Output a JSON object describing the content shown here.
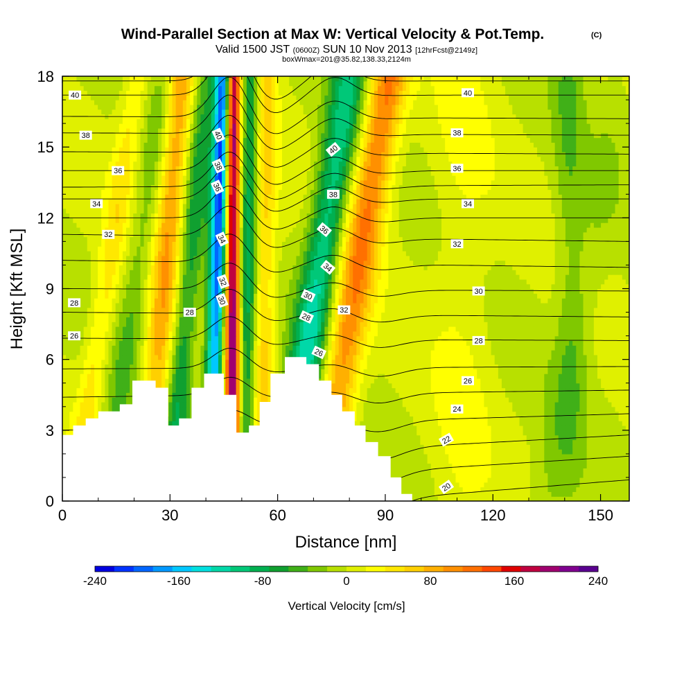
{
  "chart_data": {
    "type": "heatmap",
    "title": "Wind-Parallel Section at Max W: Vertical Velocity & Pot.Temp.",
    "title_mark": "(C)",
    "subtitle": {
      "valid": "Valid 1500 JST",
      "utc": "(0600Z)",
      "date": "SUN 10 Nov 2013",
      "forecast": "[12hrFcst@2149z]",
      "box": "boxWmax=201@35.82,138.33,2124m"
    },
    "xlabel": "Distance [nm]",
    "ylabel": "Height [Kft MSL]",
    "xlim": [
      0,
      158
    ],
    "ylim": [
      0,
      18
    ],
    "x_ticks": [
      "0",
      "30",
      "60",
      "90",
      "120",
      "150"
    ],
    "y_ticks": [
      "0",
      "3",
      "6",
      "9",
      "12",
      "15",
      "18"
    ],
    "colorbar": {
      "label": "Vertical Velocity [cm/s]",
      "ticks": [
        "-240",
        "-160",
        "-80",
        "0",
        "80",
        "160",
        "240"
      ],
      "range": [
        -240,
        240
      ],
      "colors": [
        "#0000e0",
        "#0033ff",
        "#0066ff",
        "#0099ff",
        "#00c8ff",
        "#00e0e0",
        "#00d8a8",
        "#00c878",
        "#00b050",
        "#10a030",
        "#40b018",
        "#80c800",
        "#b8e000",
        "#e0f000",
        "#ffff00",
        "#ffe800",
        "#ffd000",
        "#ffb000",
        "#ff9000",
        "#ff7000",
        "#ff4800",
        "#e00000",
        "#c00040",
        "#a00070",
        "#800090",
        "#5a0090"
      ]
    },
    "contour_labels": [
      "40",
      "38",
      "36",
      "34",
      "32",
      "30",
      "28",
      "26",
      "24",
      "22",
      "20"
    ],
    "terrain": [
      [
        0,
        0
      ],
      [
        0,
        2.8
      ],
      [
        3,
        2.8
      ],
      [
        3,
        3.2
      ],
      [
        6.5,
        3.2
      ],
      [
        6.5,
        3.5
      ],
      [
        10,
        3.5
      ],
      [
        10,
        3.8
      ],
      [
        16,
        3.8
      ],
      [
        16,
        4.1
      ],
      [
        19.5,
        4.1
      ],
      [
        19.5,
        5.1
      ],
      [
        26,
        5.1
      ],
      [
        26,
        4.8
      ],
      [
        29.5,
        4.8
      ],
      [
        29.5,
        3.2
      ],
      [
        32.5,
        3.2
      ],
      [
        32.5,
        3.5
      ],
      [
        36,
        3.5
      ],
      [
        36,
        4.8
      ],
      [
        39.5,
        4.8
      ],
      [
        39.5,
        5.4
      ],
      [
        45,
        5.4
      ],
      [
        45,
        4.5
      ],
      [
        48.5,
        4.5
      ],
      [
        48.5,
        2.9
      ],
      [
        52,
        2.9
      ],
      [
        52,
        3.2
      ],
      [
        55,
        3.2
      ],
      [
        55,
        4.2
      ],
      [
        58,
        4.2
      ],
      [
        58,
        5.4
      ],
      [
        62,
        5.4
      ],
      [
        62,
        6.1
      ],
      [
        68,
        6.1
      ],
      [
        68,
        5.8
      ],
      [
        71.5,
        5.8
      ],
      [
        71.5,
        5.1
      ],
      [
        75,
        5.1
      ],
      [
        75,
        4.5
      ],
      [
        78,
        4.5
      ],
      [
        78,
        3.8
      ],
      [
        81.5,
        3.8
      ],
      [
        81.5,
        3.2
      ],
      [
        84.5,
        3.2
      ],
      [
        84.5,
        2.5
      ],
      [
        88,
        2.5
      ],
      [
        88,
        1.9
      ],
      [
        91.5,
        1.9
      ],
      [
        91.5,
        1.0
      ],
      [
        94.5,
        1.0
      ],
      [
        94.5,
        0.3
      ],
      [
        97.5,
        0.3
      ],
      [
        97.5,
        0
      ]
    ],
    "w_features": [
      {
        "x0": 3.5,
        "x1": 21,
        "w": 2.5,
        "top": 0.18,
        "bot": 0.2
      },
      {
        "x0": 11.5,
        "x1": 29.5,
        "w": 3.0,
        "top": -0.15,
        "bot": -0.15
      },
      {
        "x0": 24,
        "x1": 33,
        "w": 3.0,
        "top": 0.45,
        "bot": 0.3
      },
      {
        "x0": 29.5,
        "x1": 40,
        "w": 2.6,
        "top": -0.25,
        "bot": -0.35
      },
      {
        "x0": 41,
        "x1": 45,
        "w": 1.7,
        "top": -0.95,
        "bot": -0.65
      },
      {
        "x0": 47.5,
        "x1": 47.5,
        "w": 1.5,
        "top": 0.95,
        "bot": 0.85
      },
      {
        "x0": 51,
        "x1": 53,
        "w": 2.2,
        "top": -0.45,
        "bot": -0.4
      },
      {
        "x0": 55,
        "x1": 56,
        "w": 2.5,
        "top": 0.35,
        "bot": 0.3
      },
      {
        "x0": 62,
        "x1": 80,
        "w": 3.5,
        "top": -0.4,
        "bot": -0.55
      },
      {
        "x0": 72,
        "x1": 91,
        "w": 3.8,
        "top": 0.5,
        "bot": 0.4
      },
      {
        "x0": 111,
        "x1": 112,
        "w": 6.0,
        "top": 0.08,
        "bot": 0.08
      },
      {
        "x0": 142,
        "x1": 141,
        "w": 3.0,
        "top": -0.15,
        "bot": -0.05
      },
      {
        "x0": 135,
        "x1": 156,
        "w": 4.0,
        "top": -0.04,
        "bot": -0.1
      }
    ],
    "theta_levels": [
      {
        "label": "20",
        "left": -4.5,
        "right": -1.0
      },
      {
        "label": "21",
        "left": -2.5,
        "right": -0.2
      },
      {
        "label": "22",
        "left": -1.0,
        "right": 0.9
      },
      {
        "label": "23",
        "left": 0.4,
        "right": 1.9
      },
      {
        "label": "24",
        "left": 1.5,
        "right": 2.8
      },
      {
        "label": "25",
        "left": 3.0,
        "right": 3.7
      },
      {
        "label": "26",
        "left": 4.4,
        "right": 4.7
      },
      {
        "label": "27",
        "left": 5.6,
        "right": 5.7
      },
      {
        "label": "28",
        "left": 6.9,
        "right": 6.8
      },
      {
        "label": "29",
        "left": 8.0,
        "right": 7.8
      },
      {
        "label": "30",
        "left": 9.0,
        "right": 8.9
      },
      {
        "label": "31",
        "left": 10.2,
        "right": 9.9
      },
      {
        "label": "32",
        "left": 11.3,
        "right": 11.0
      },
      {
        "label": "33",
        "left": 12.0,
        "right": 12.0
      },
      {
        "label": "34",
        "left": 12.8,
        "right": 12.8
      },
      {
        "label": "35",
        "left": 13.3,
        "right": 13.4
      },
      {
        "label": "36",
        "left": 14.0,
        "right": 14.0
      },
      {
        "label": "37",
        "left": 14.8,
        "right": 14.7
      },
      {
        "label": "38",
        "left": 15.6,
        "right": 15.5
      },
      {
        "label": "39",
        "left": 16.3,
        "right": 16.2
      },
      {
        "label": "40",
        "left": 17.2,
        "right": 17.2
      },
      {
        "label": "41",
        "left": 17.8,
        "right": 17.8
      }
    ],
    "theta_labels": [
      {
        "text": "40",
        "x": 3.5,
        "y": 17.2
      },
      {
        "text": "38",
        "x": 6.5,
        "y": 15.5
      },
      {
        "text": "36",
        "x": 15.5,
        "y": 14.0
      },
      {
        "text": "34",
        "x": 9.5,
        "y": 12.6
      },
      {
        "text": "32",
        "x": 12.8,
        "y": 11.3
      },
      {
        "text": "28",
        "x": 3.3,
        "y": 8.4
      },
      {
        "text": "26",
        "x": 3.3,
        "y": 7.0
      },
      {
        "text": "28",
        "x": 35.5,
        "y": 8.0
      },
      {
        "text": "40",
        "x": 43.5,
        "y": 15.5,
        "rot": 65
      },
      {
        "text": "38",
        "x": 43.5,
        "y": 14.2,
        "rot": 65
      },
      {
        "text": "36",
        "x": 43.2,
        "y": 13.3,
        "rot": 65
      },
      {
        "text": "34",
        "x": 44.5,
        "y": 11.1,
        "rot": 65
      },
      {
        "text": "32",
        "x": 44.8,
        "y": 9.3,
        "rot": 70
      },
      {
        "text": "30",
        "x": 44.5,
        "y": 8.5,
        "rot": 70
      },
      {
        "text": "40",
        "x": 75.5,
        "y": 14.9,
        "rot": -40
      },
      {
        "text": "38",
        "x": 75.5,
        "y": 13.0
      },
      {
        "text": "36",
        "x": 73.0,
        "y": 11.5,
        "rot": 40
      },
      {
        "text": "34",
        "x": 74.0,
        "y": 9.9,
        "rot": 40
      },
      {
        "text": "30",
        "x": 68.5,
        "y": 8.7,
        "rot": 25
      },
      {
        "text": "28",
        "x": 68.0,
        "y": 7.8,
        "rot": 25
      },
      {
        "text": "26",
        "x": 71.5,
        "y": 6.3,
        "rot": 25
      },
      {
        "text": "32",
        "x": 78.5,
        "y": 8.1
      },
      {
        "text": "40",
        "x": 113,
        "y": 17.3
      },
      {
        "text": "38",
        "x": 110,
        "y": 15.6
      },
      {
        "text": "36",
        "x": 110,
        "y": 14.1
      },
      {
        "text": "34",
        "x": 113,
        "y": 12.6
      },
      {
        "text": "32",
        "x": 110,
        "y": 10.9
      },
      {
        "text": "30",
        "x": 116,
        "y": 8.9
      },
      {
        "text": "28",
        "x": 116,
        "y": 6.8
      },
      {
        "text": "26",
        "x": 113,
        "y": 5.1
      },
      {
        "text": "24",
        "x": 110,
        "y": 3.9
      },
      {
        "text": "22",
        "x": 107,
        "y": 2.6,
        "rot": -30
      },
      {
        "text": "20",
        "x": 107,
        "y": 0.6,
        "rot": -35
      }
    ]
  }
}
